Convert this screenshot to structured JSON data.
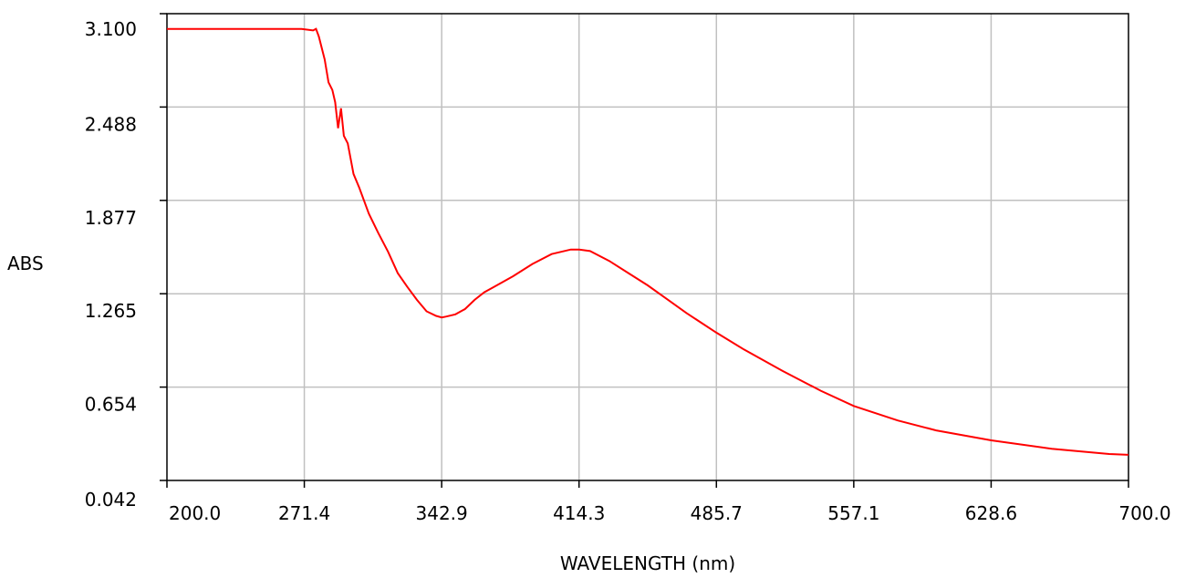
{
  "chart_data": {
    "type": "line",
    "title": "",
    "xlabel": "WAVELENGTH (nm)",
    "ylabel": "ABS",
    "xlim": [
      200.0,
      700.0
    ],
    "ylim": [
      0.042,
      3.1
    ],
    "x_ticks": [
      "200.0",
      "271.4",
      "342.9",
      "414.3",
      "485.7",
      "557.1",
      "628.6",
      "700.0"
    ],
    "y_ticks": [
      "0.042",
      "0.654",
      "1.265",
      "1.877",
      "2.488",
      "3.100"
    ],
    "grid": true,
    "line_color": "#ff0000",
    "grid_color": "#c0c0c0",
    "series": [
      {
        "x": [
          200.0,
          240.0,
          270.0,
          276.0,
          277.5,
          279.0,
          282.0,
          284.0,
          286.0,
          287.5,
          289.0,
          290.5,
          292.0,
          294.0,
          297.0,
          300.0,
          305.0,
          310.0,
          315.0,
          320.0,
          325.0,
          330.0,
          335.0,
          340.0,
          342.9,
          345.0,
          350.0,
          355.0,
          360.0,
          365.0,
          370.0,
          380.0,
          390.0,
          400.0,
          410.0,
          414.3,
          420.0,
          430.0,
          440.0,
          450.0,
          460.0,
          470.0,
          485.7,
          500.0,
          520.0,
          540.0,
          557.1,
          580.0,
          600.0,
          628.6,
          660.0,
          690.0,
          700.0
        ],
        "values": [
          3.0,
          3.0,
          3.0,
          2.99,
          3.0,
          2.95,
          2.8,
          2.65,
          2.6,
          2.52,
          2.35,
          2.48,
          2.3,
          2.25,
          2.05,
          1.96,
          1.79,
          1.66,
          1.54,
          1.4,
          1.31,
          1.225,
          1.15,
          1.12,
          1.11,
          1.115,
          1.13,
          1.165,
          1.225,
          1.275,
          1.31,
          1.38,
          1.46,
          1.525,
          1.555,
          1.555,
          1.545,
          1.48,
          1.4,
          1.32,
          1.23,
          1.14,
          1.01,
          0.9,
          0.76,
          0.63,
          0.53,
          0.435,
          0.37,
          0.305,
          0.25,
          0.215,
          0.21
        ]
      }
    ]
  }
}
